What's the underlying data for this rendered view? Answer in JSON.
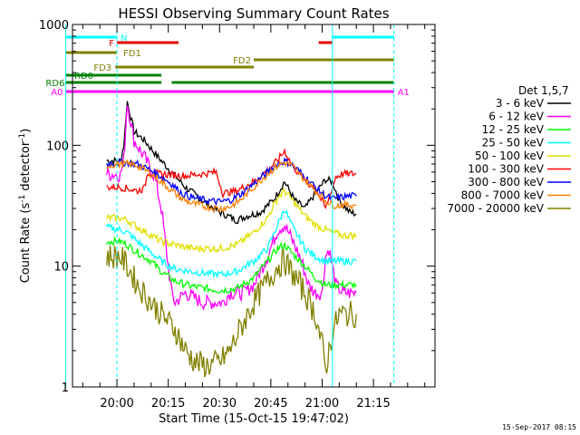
{
  "chart_data": {
    "type": "line",
    "title": "HESSI Observing Summary Count Rates",
    "xlabel": "Start Time (15-Oct-15 19:47:02)",
    "ylabel_parts": [
      "Count Rate (s",
      "-1",
      " detector",
      "-1",
      ")"
    ],
    "xlim_min": [
      -13,
      93
    ],
    "ylim": [
      1,
      1000
    ],
    "yscale": "log",
    "x_ticks": [
      {
        "t": 0,
        "label": "20:00"
      },
      {
        "t": 15,
        "label": "20:15"
      },
      {
        "t": 30,
        "label": "20:30"
      },
      {
        "t": 45,
        "label": "20:45"
      },
      {
        "t": 60,
        "label": "21:00"
      },
      {
        "t": 75,
        "label": "21:15"
      }
    ],
    "y_ticks": [
      {
        "v": 1,
        "label": "1"
      },
      {
        "v": 10,
        "label": "10"
      },
      {
        "v": 100,
        "label": "100"
      },
      {
        "v": 1000,
        "label": "1000"
      }
    ],
    "legend_title": "Det 1,5,7",
    "series": [
      {
        "name": "3 - 6 keV",
        "color": "#000000",
        "points": [
          [
            -3,
            75
          ],
          [
            1,
            74
          ],
          [
            2,
            100
          ],
          [
            3,
            230
          ],
          [
            5,
            130
          ],
          [
            8,
            110
          ],
          [
            12,
            80
          ],
          [
            16,
            60
          ],
          [
            20,
            45
          ],
          [
            25,
            35
          ],
          [
            30,
            28
          ],
          [
            35,
            24
          ],
          [
            38,
            26
          ],
          [
            42,
            28
          ],
          [
            46,
            36
          ],
          [
            49,
            50
          ],
          [
            52,
            35
          ],
          [
            55,
            30
          ],
          [
            58,
            40
          ],
          [
            61,
            52
          ],
          [
            63,
            50
          ],
          [
            65,
            35
          ],
          [
            68,
            28
          ],
          [
            70,
            27
          ]
        ]
      },
      {
        "name": "6 - 12 keV",
        "color": "#ff00ff",
        "points": [
          [
            -3,
            58
          ],
          [
            1,
            57
          ],
          [
            2,
            75
          ],
          [
            3,
            230
          ],
          [
            5,
            110
          ],
          [
            8,
            80
          ],
          [
            11,
            55
          ],
          [
            13,
            30
          ],
          [
            15,
            10
          ],
          [
            16,
            6
          ],
          [
            17,
            5
          ],
          [
            20,
            6
          ],
          [
            25,
            5
          ],
          [
            29,
            5
          ],
          [
            31,
            5
          ],
          [
            33,
            6
          ],
          [
            37,
            6
          ],
          [
            40,
            7
          ],
          [
            44,
            12
          ],
          [
            47,
            20
          ],
          [
            49,
            22
          ],
          [
            51,
            17
          ],
          [
            54,
            11
          ],
          [
            56,
            7
          ],
          [
            58,
            6
          ],
          [
            60,
            6
          ],
          [
            61,
            12
          ],
          [
            62,
            14
          ],
          [
            64,
            7
          ],
          [
            66,
            6
          ],
          [
            68,
            6
          ],
          [
            70,
            6
          ]
        ]
      },
      {
        "name": "12 - 25 keV",
        "color": "#00ff00",
        "points": [
          [
            -3,
            16
          ],
          [
            1,
            16
          ],
          [
            3,
            15
          ],
          [
            6,
            13
          ],
          [
            10,
            11
          ],
          [
            13,
            9
          ],
          [
            17,
            7.5
          ],
          [
            22,
            6.8
          ],
          [
            30,
            6.3
          ],
          [
            35,
            6.5
          ],
          [
            40,
            8
          ],
          [
            44,
            11
          ],
          [
            47,
            14
          ],
          [
            49,
            15
          ],
          [
            51,
            13
          ],
          [
            55,
            10
          ],
          [
            58,
            8
          ],
          [
            61,
            7
          ],
          [
            63,
            7
          ],
          [
            66,
            7
          ],
          [
            68,
            7
          ],
          [
            70,
            7
          ]
        ]
      },
      {
        "name": "25 - 50 keV",
        "color": "#00ffff",
        "points": [
          [
            -3,
            21
          ],
          [
            1,
            20
          ],
          [
            3,
            19
          ],
          [
            6,
            16
          ],
          [
            10,
            13
          ],
          [
            13,
            11
          ],
          [
            17,
            9.5
          ],
          [
            22,
            9
          ],
          [
            30,
            8.5
          ],
          [
            35,
            9
          ],
          [
            40,
            11
          ],
          [
            44,
            14
          ],
          [
            47,
            22
          ],
          [
            49,
            30
          ],
          [
            51,
            22
          ],
          [
            55,
            14
          ],
          [
            58,
            12
          ],
          [
            61,
            11
          ],
          [
            63,
            11
          ],
          [
            66,
            11
          ],
          [
            68,
            11
          ],
          [
            70,
            11
          ]
        ]
      },
      {
        "name": "50 - 100 keV",
        "color": "#e0e000",
        "points": [
          [
            -3,
            25
          ],
          [
            1,
            25
          ],
          [
            3,
            24
          ],
          [
            6,
            21
          ],
          [
            10,
            18
          ],
          [
            13,
            16
          ],
          [
            17,
            15
          ],
          [
            22,
            14
          ],
          [
            30,
            14
          ],
          [
            35,
            15
          ],
          [
            40,
            19
          ],
          [
            44,
            25
          ],
          [
            47,
            37
          ],
          [
            49,
            42
          ],
          [
            51,
            36
          ],
          [
            55,
            26
          ],
          [
            58,
            22
          ],
          [
            61,
            20
          ],
          [
            63,
            19
          ],
          [
            66,
            18
          ],
          [
            68,
            18
          ],
          [
            70,
            18
          ]
        ]
      },
      {
        "name": "100 - 300 keV",
        "color": "#ff0000",
        "points": [
          [
            -3,
            45
          ],
          [
            1,
            45
          ],
          [
            3,
            44
          ],
          [
            6,
            42
          ],
          [
            8,
            44
          ],
          [
            9,
            60
          ],
          [
            12,
            58
          ],
          [
            16,
            57
          ],
          [
            20,
            56
          ],
          [
            25,
            58
          ],
          [
            29,
            60
          ],
          [
            31,
            40
          ],
          [
            35,
            42
          ],
          [
            40,
            50
          ],
          [
            44,
            62
          ],
          [
            47,
            75
          ],
          [
            49,
            90
          ],
          [
            51,
            70
          ],
          [
            55,
            50
          ],
          [
            58,
            45
          ],
          [
            61,
            30
          ],
          [
            64,
            55
          ],
          [
            66,
            58
          ],
          [
            68,
            58
          ],
          [
            70,
            58
          ]
        ]
      },
      {
        "name": "300 - 800 keV",
        "color": "#0000ff",
        "points": [
          [
            -3,
            70
          ],
          [
            1,
            72
          ],
          [
            3,
            72
          ],
          [
            6,
            70
          ],
          [
            10,
            62
          ],
          [
            13,
            55
          ],
          [
            16,
            48
          ],
          [
            19,
            40
          ],
          [
            22,
            37
          ],
          [
            26,
            35
          ],
          [
            30,
            34
          ],
          [
            33,
            35
          ],
          [
            36,
            39
          ],
          [
            40,
            48
          ],
          [
            44,
            60
          ],
          [
            47,
            70
          ],
          [
            49,
            74
          ],
          [
            51,
            70
          ],
          [
            55,
            55
          ],
          [
            58,
            45
          ],
          [
            61,
            38
          ],
          [
            63,
            36
          ],
          [
            65,
            37
          ],
          [
            68,
            38
          ],
          [
            70,
            38
          ]
        ]
      },
      {
        "name": "800 - 7000 keV",
        "color": "#ff8000",
        "points": [
          [
            -3,
            68
          ],
          [
            1,
            70
          ],
          [
            3,
            70
          ],
          [
            6,
            68
          ],
          [
            10,
            58
          ],
          [
            13,
            50
          ],
          [
            16,
            42
          ],
          [
            19,
            36
          ],
          [
            22,
            33
          ],
          [
            26,
            31
          ],
          [
            30,
            30
          ],
          [
            33,
            31
          ],
          [
            36,
            35
          ],
          [
            40,
            45
          ],
          [
            44,
            58
          ],
          [
            47,
            68
          ],
          [
            49,
            72
          ],
          [
            51,
            68
          ],
          [
            55,
            52
          ],
          [
            58,
            42
          ],
          [
            61,
            35
          ],
          [
            63,
            32
          ],
          [
            65,
            32
          ],
          [
            68,
            32
          ],
          [
            70,
            32
          ]
        ]
      },
      {
        "name": "7000 - 20000 keV",
        "color": "#808000",
        "points": [
          [
            -3,
            12
          ],
          [
            1,
            12
          ],
          [
            3,
            10
          ],
          [
            6,
            7
          ],
          [
            10,
            5
          ],
          [
            13,
            4
          ],
          [
            17,
            3
          ],
          [
            20,
            2
          ],
          [
            23,
            1.6
          ],
          [
            26,
            1.5
          ],
          [
            30,
            1.6
          ],
          [
            33,
            2
          ],
          [
            36,
            3
          ],
          [
            40,
            5
          ],
          [
            44,
            7.5
          ],
          [
            47,
            10
          ],
          [
            49,
            11
          ],
          [
            51,
            9
          ],
          [
            55,
            6
          ],
          [
            58,
            4
          ],
          [
            60,
            2.2
          ],
          [
            61,
            1.4
          ],
          [
            63,
            2.8
          ],
          [
            65,
            4
          ],
          [
            68,
            4
          ],
          [
            70,
            4
          ]
        ]
      }
    ],
    "flag_bars": [
      {
        "label": "N",
        "color": "#00ffff",
        "label_side": "right",
        "segments": [
          [
            -15,
            0
          ],
          [
            63,
            81
          ]
        ]
      },
      {
        "label": "F",
        "color": "#e00000",
        "label_side": "left",
        "segments": [
          [
            0,
            18
          ],
          [
            59,
            62
          ],
          [
            62,
            63
          ]
        ]
      },
      {
        "label": "FD1",
        "color": "#808000",
        "label_side": "right",
        "segments": [
          [
            -15,
            0
          ]
        ]
      },
      {
        "label": "FD2",
        "color": "#808000",
        "label_side": "left",
        "segments": [
          [
            40,
            81
          ]
        ]
      },
      {
        "label": "FD3",
        "color": "#808000",
        "label_side": "left",
        "segments": [
          [
            -0.5,
            40
          ]
        ]
      },
      {
        "label": "RD0",
        "color": "#008000",
        "label_side": "left",
        "segments": [
          [
            -15,
            13
          ]
        ]
      },
      {
        "label": "RD6",
        "color": "#008000",
        "label_side": "left",
        "segments": [
          [
            -15,
            -13
          ],
          [
            -13,
            13
          ],
          [
            16,
            33
          ],
          [
            33,
            63
          ],
          [
            63,
            81
          ]
        ]
      },
      {
        "label": "A0",
        "color": "#ff00ff",
        "label_side": "left",
        "segments": [
          [
            -15,
            0
          ]
        ]
      },
      {
        "label": "A1",
        "color": "#ff00ff",
        "label_side": "right",
        "segments": [
          [
            0,
            81
          ]
        ]
      }
    ],
    "vertical_markers": [
      {
        "t": -15,
        "style": "solid",
        "color": "#00ffff"
      },
      {
        "t": 0,
        "style": "dashed",
        "color": "#00ffff"
      },
      {
        "t": 63,
        "style": "solid",
        "color": "#00ffff"
      },
      {
        "t": 81,
        "style": "dashed",
        "color": "#00ffff"
      }
    ]
  },
  "footer": {
    "date_stamp": "15-Sep-2017 08:15"
  }
}
